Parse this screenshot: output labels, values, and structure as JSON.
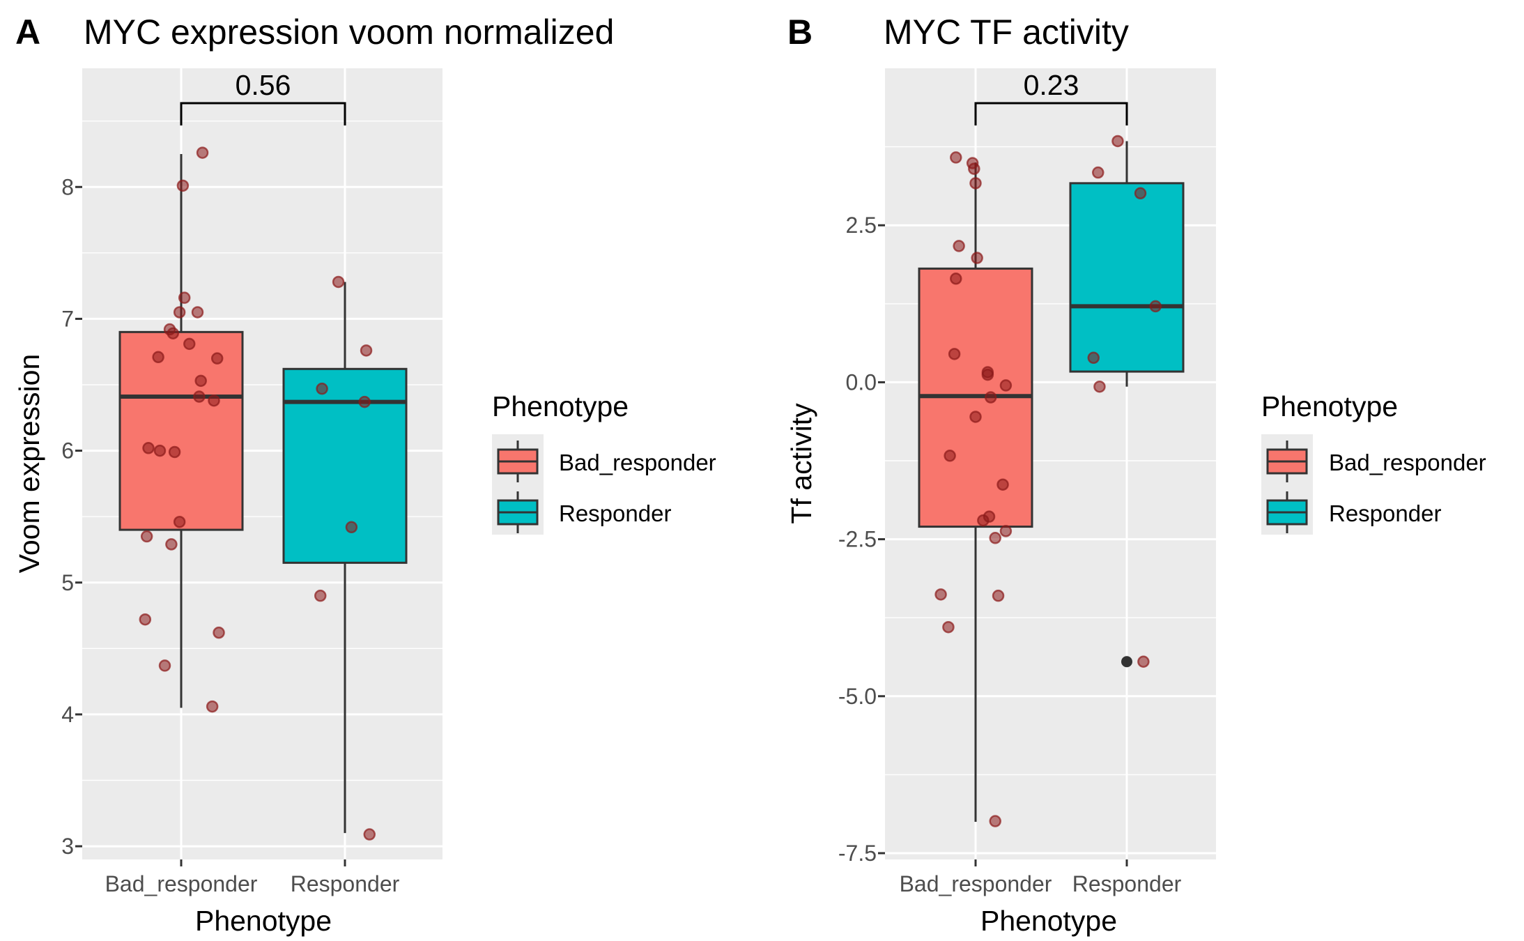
{
  "colors": {
    "panel_bg": "#EBEBEB",
    "grid": "#FFFFFF",
    "Bad_responder": "#F8766D",
    "Responder": "#00BFC4",
    "point": "#8B1A1A",
    "outlier": "#333333",
    "box_line": "#333333"
  },
  "legend": {
    "title": "Phenotype",
    "items": [
      "Bad_responder",
      "Responder"
    ]
  },
  "chart_data": [
    {
      "type": "box",
      "panel_label": "A",
      "title": "MYC expression voom normalized",
      "xlabel": "Phenotype",
      "ylabel": "Voom expression",
      "categories": [
        "Bad_responder",
        "Responder"
      ],
      "ylim": [
        2.9,
        8.9
      ],
      "yticks": [
        3,
        4,
        5,
        6,
        7,
        8
      ],
      "ytick_labels": [
        "3",
        "4",
        "5",
        "6",
        "7",
        "8"
      ],
      "grid": true,
      "legend_position": "right",
      "pvalue": "0.56",
      "boxes": [
        {
          "name": "Bad_responder",
          "min": 4.05,
          "q1": 5.4,
          "median": 6.41,
          "q3": 6.9,
          "max": 8.25
        },
        {
          "name": "Responder",
          "min": 3.1,
          "q1": 5.15,
          "median": 6.37,
          "q3": 6.62,
          "max": 7.28
        }
      ],
      "outliers": [],
      "points": [
        {
          "x": 0.13,
          "y": 8.26
        },
        {
          "x": 0.01,
          "y": 8.01
        },
        {
          "x": 0.02,
          "y": 7.16
        },
        {
          "x": -0.01,
          "y": 7.05
        },
        {
          "x": 0.1,
          "y": 7.05
        },
        {
          "x": -0.07,
          "y": 6.92
        },
        {
          "x": -0.05,
          "y": 6.89
        },
        {
          "x": 0.05,
          "y": 6.81
        },
        {
          "x": -0.14,
          "y": 6.71
        },
        {
          "x": 0.22,
          "y": 6.7
        },
        {
          "x": 0.12,
          "y": 6.53
        },
        {
          "x": 0.11,
          "y": 6.41
        },
        {
          "x": 0.2,
          "y": 6.38
        },
        {
          "x": -0.2,
          "y": 6.02
        },
        {
          "x": -0.13,
          "y": 6.0
        },
        {
          "x": -0.04,
          "y": 5.99
        },
        {
          "x": -0.01,
          "y": 5.46
        },
        {
          "x": -0.21,
          "y": 5.35
        },
        {
          "x": -0.06,
          "y": 5.29
        },
        {
          "x": -0.22,
          "y": 4.72
        },
        {
          "x": 0.23,
          "y": 4.62
        },
        {
          "x": -0.1,
          "y": 4.37
        },
        {
          "x": 0.19,
          "y": 4.06
        },
        {
          "x": 0.96,
          "y": 7.28
        },
        {
          "x": 1.13,
          "y": 6.76
        },
        {
          "x": 0.86,
          "y": 6.47
        },
        {
          "x": 1.12,
          "y": 6.37
        },
        {
          "x": 1.04,
          "y": 5.42
        },
        {
          "x": 0.85,
          "y": 4.9
        },
        {
          "x": 1.15,
          "y": 3.09
        }
      ]
    },
    {
      "type": "box",
      "panel_label": "B",
      "title": "MYC TF activity",
      "xlabel": "Phenotype",
      "ylabel": "Tf activity",
      "categories": [
        "Bad_responder",
        "Responder"
      ],
      "ylim": [
        -7.6,
        5.0
      ],
      "yticks": [
        -7.5,
        -5.0,
        -2.5,
        0.0,
        2.5
      ],
      "ytick_labels": [
        "-7.5",
        "-5.0",
        "-2.5",
        "0.0",
        "2.5"
      ],
      "grid": true,
      "legend_position": "right",
      "pvalue": "0.23",
      "boxes": [
        {
          "name": "Bad_responder",
          "min": -7.0,
          "q1": -2.3,
          "median": -0.22,
          "q3": 1.81,
          "max": 3.5
        },
        {
          "name": "Responder",
          "min": -0.07,
          "q1": 0.17,
          "median": 1.21,
          "q3": 3.17,
          "max": 3.84
        }
      ],
      "outliers": [
        {
          "category": "Responder",
          "y": -4.45
        }
      ],
      "points": [
        {
          "x": -0.13,
          "y": 3.58
        },
        {
          "x": -0.02,
          "y": 3.49
        },
        {
          "x": -0.01,
          "y": 3.4
        },
        {
          "x": 0.0,
          "y": 3.17
        },
        {
          "x": -0.11,
          "y": 2.17
        },
        {
          "x": 0.01,
          "y": 1.98
        },
        {
          "x": -0.13,
          "y": 1.65
        },
        {
          "x": -0.14,
          "y": 0.45
        },
        {
          "x": 0.08,
          "y": 0.16
        },
        {
          "x": 0.08,
          "y": 0.12
        },
        {
          "x": 0.2,
          "y": -0.05
        },
        {
          "x": 0.1,
          "y": -0.24
        },
        {
          "x": 0.0,
          "y": -0.55
        },
        {
          "x": -0.17,
          "y": -1.17
        },
        {
          "x": 0.18,
          "y": -1.63
        },
        {
          "x": 0.09,
          "y": -2.14
        },
        {
          "x": 0.05,
          "y": -2.2
        },
        {
          "x": 0.2,
          "y": -2.37
        },
        {
          "x": 0.13,
          "y": -2.48
        },
        {
          "x": -0.23,
          "y": -3.38
        },
        {
          "x": 0.15,
          "y": -3.4
        },
        {
          "x": -0.18,
          "y": -3.9
        },
        {
          "x": 0.13,
          "y": -6.99
        },
        {
          "x": 0.94,
          "y": 3.84
        },
        {
          "x": 0.81,
          "y": 3.34
        },
        {
          "x": 1.09,
          "y": 3.01
        },
        {
          "x": 1.19,
          "y": 1.21
        },
        {
          "x": 0.78,
          "y": 0.39
        },
        {
          "x": 0.82,
          "y": -0.07
        },
        {
          "x": 1.11,
          "y": -4.45
        }
      ]
    }
  ]
}
